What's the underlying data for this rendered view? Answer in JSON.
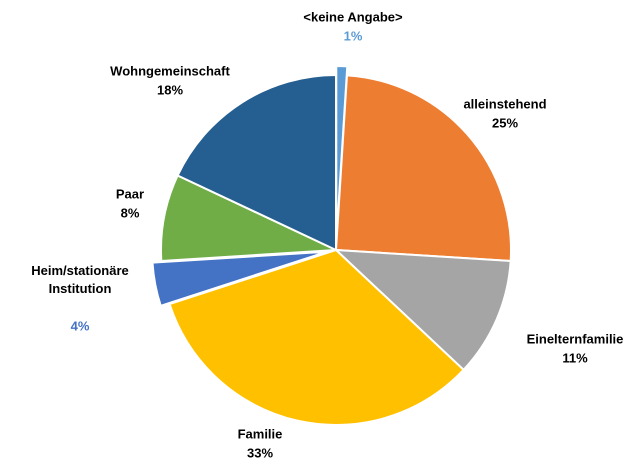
{
  "chart_data": {
    "type": "pie",
    "categories": [
      "<keine Angabe>",
      "alleinstehend",
      "Einelternfamilie",
      "Familie",
      "Heim/stationäre Institution",
      "Paar",
      "Wohngemeinschaft"
    ],
    "values": [
      1,
      25,
      11,
      33,
      4,
      8,
      18
    ],
    "value_labels": [
      "1%",
      "25%",
      "11%",
      "33%",
      "4%",
      "8%",
      "18%"
    ],
    "colors": [
      "#5b9bd5",
      "#ed7d31",
      "#a5a5a5",
      "#ffc000",
      "#4472c4",
      "#70ad47",
      "#255e91"
    ],
    "value_label_colors": [
      "#5b9bd5",
      "#000000",
      "#000000",
      "#000000",
      "#4472c4",
      "#000000",
      "#000000"
    ]
  }
}
